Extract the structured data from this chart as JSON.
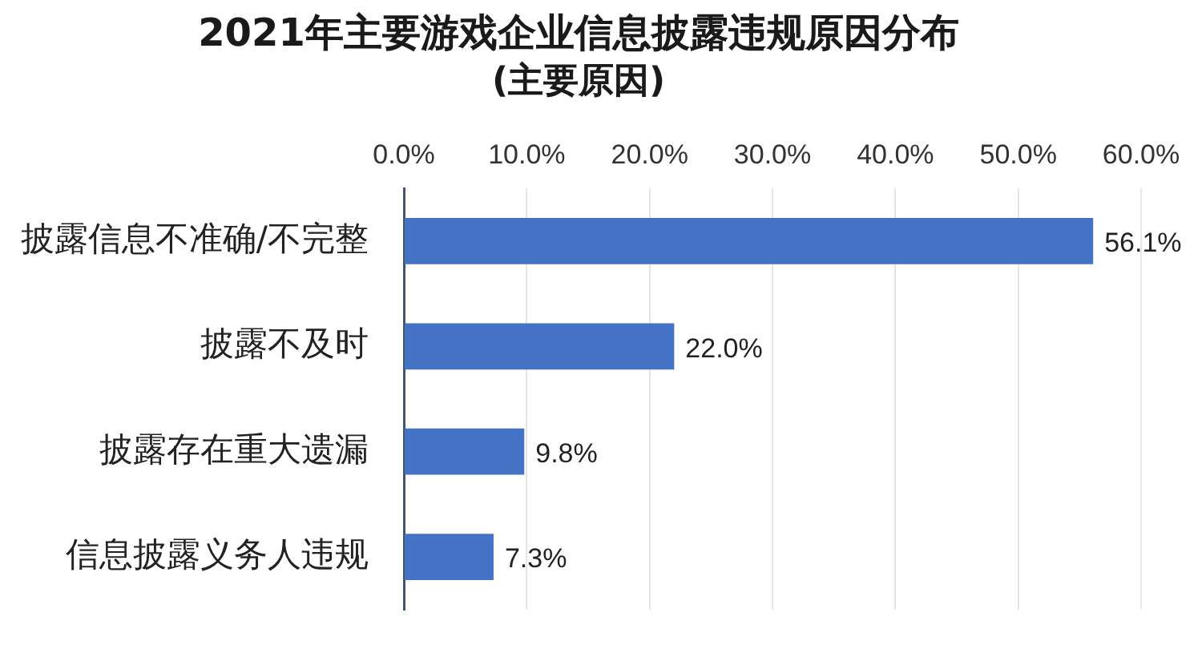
{
  "chart_data": {
    "type": "bar",
    "orientation": "horizontal",
    "title": "2021年主要游戏企业信息披露违规原因分布",
    "subtitle": "(主要原因)",
    "categories": [
      "披露信息不准确/不完整",
      "披露不及时",
      "披露存在重大遗漏",
      "信息披露义务人违规"
    ],
    "values": [
      56.1,
      22.0,
      9.8,
      7.3
    ],
    "value_labels": [
      "56.1%",
      "22.0%",
      "9.8%",
      "7.3%"
    ],
    "color": "#4472c4",
    "xlim": [
      0,
      60
    ],
    "xticks": [
      {
        "value": 0,
        "label": "0.0%"
      },
      {
        "value": 10,
        "label": "10.0%"
      },
      {
        "value": 20,
        "label": "20.0%"
      },
      {
        "value": 30,
        "label": "30.0%"
      },
      {
        "value": 40,
        "label": "40.0%"
      },
      {
        "value": 50,
        "label": "50.0%"
      },
      {
        "value": 60,
        "label": "60.0%"
      }
    ],
    "grid": "x"
  }
}
